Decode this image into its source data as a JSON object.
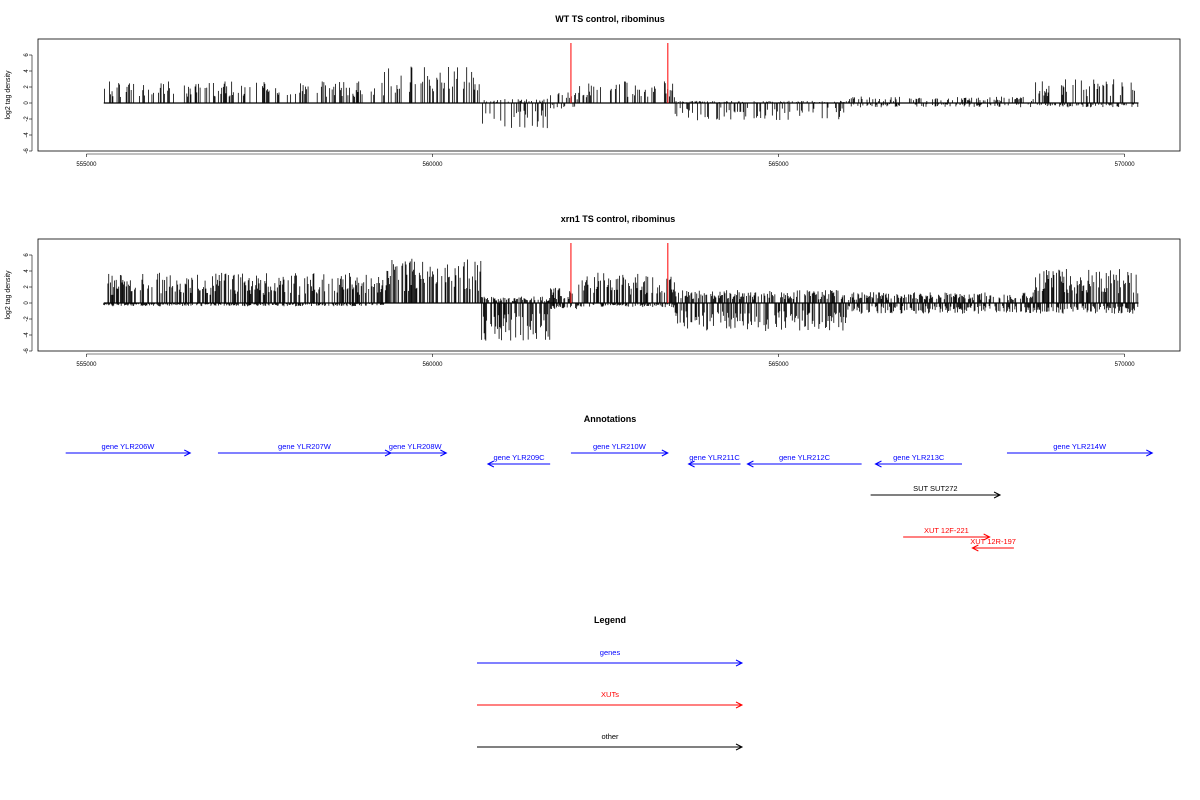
{
  "colors": {
    "genes": "#0000ff",
    "xuts": "#ff0000",
    "other": "#000000",
    "bars": "#000000",
    "marker": "#ff0000"
  },
  "chart_data": [
    {
      "type": "bar",
      "title": "WT TS control, ribominus",
      "ylabel": "log2 tag density",
      "xlim": [
        554300,
        570800
      ],
      "ylim": [
        -6,
        8
      ],
      "xticks": [
        555000,
        560000,
        565000,
        570000
      ],
      "yticks": [
        -6,
        -4,
        -2,
        0,
        2,
        4,
        6
      ],
      "data_range": [
        555250,
        570200
      ],
      "grid": false,
      "marker_lines": [
        562000,
        563400
      ],
      "profile": [
        {
          "from": 555250,
          "to": 559300,
          "pos": 2.0,
          "neg": 0.0
        },
        {
          "from": 559300,
          "to": 560700,
          "pos": 3.5,
          "neg": 0.0
        },
        {
          "from": 560700,
          "to": 561700,
          "pos": 0.4,
          "neg": -2.4
        },
        {
          "from": 561700,
          "to": 562100,
          "pos": 1.0,
          "neg": -0.6
        },
        {
          "from": 562100,
          "to": 563500,
          "pos": 2.0,
          "neg": 0.0
        },
        {
          "from": 563500,
          "to": 566000,
          "pos": 0.2,
          "neg": -1.6
        },
        {
          "from": 566000,
          "to": 568700,
          "pos": 0.6,
          "neg": -0.4
        },
        {
          "from": 568700,
          "to": 570200,
          "pos": 2.2,
          "neg": -0.4
        }
      ]
    },
    {
      "type": "bar",
      "title": "xrn1 TS control, ribominus",
      "ylabel": "log2 tag density",
      "xlim": [
        554300,
        570800
      ],
      "ylim": [
        -6,
        8
      ],
      "xticks": [
        555000,
        560000,
        565000,
        570000
      ],
      "yticks": [
        -6,
        -4,
        -2,
        0,
        2,
        4,
        6
      ],
      "data_range": [
        555250,
        570200
      ],
      "grid": false,
      "marker_lines": [
        562000,
        563400
      ],
      "profile": [
        {
          "from": 555250,
          "to": 559300,
          "pos": 2.8,
          "neg": -0.3
        },
        {
          "from": 559300,
          "to": 560700,
          "pos": 4.2,
          "neg": 0.0
        },
        {
          "from": 560700,
          "to": 561700,
          "pos": 0.6,
          "neg": -3.5
        },
        {
          "from": 561700,
          "to": 562100,
          "pos": 1.4,
          "neg": -0.6
        },
        {
          "from": 562100,
          "to": 563500,
          "pos": 2.8,
          "neg": -0.4
        },
        {
          "from": 563500,
          "to": 566000,
          "pos": 1.2,
          "neg": -2.6
        },
        {
          "from": 566000,
          "to": 568700,
          "pos": 1.0,
          "neg": -1.0
        },
        {
          "from": 568700,
          "to": 570200,
          "pos": 3.2,
          "neg": -1.0
        }
      ]
    }
  ],
  "annotations": {
    "title": "Annotations",
    "items": [
      {
        "label": "gene YLR206W",
        "start": 554700,
        "end": 556500,
        "strand": "+",
        "row": 0,
        "type": "genes"
      },
      {
        "label": "gene YLR207W",
        "start": 556900,
        "end": 559400,
        "strand": "+",
        "row": 0,
        "type": "genes"
      },
      {
        "label": "gene YLR208W",
        "start": 559300,
        "end": 560200,
        "strand": "+",
        "row": 0,
        "type": "genes"
      },
      {
        "label": "gene YLR209C",
        "start": 560800,
        "end": 561700,
        "strand": "-",
        "row": 1,
        "type": "genes"
      },
      {
        "label": "gene YLR210W",
        "start": 562000,
        "end": 563400,
        "strand": "+",
        "row": 0,
        "type": "genes"
      },
      {
        "label": "gene YLR211C",
        "start": 563700,
        "end": 564450,
        "strand": "-",
        "row": 1,
        "type": "genes"
      },
      {
        "label": "gene YLR212C",
        "start": 564550,
        "end": 566200,
        "strand": "-",
        "row": 1,
        "type": "genes"
      },
      {
        "label": "gene YLR213C",
        "start": 566400,
        "end": 567650,
        "strand": "-",
        "row": 1,
        "type": "genes"
      },
      {
        "label": "gene YLR214W",
        "start": 568300,
        "end": 570400,
        "strand": "+",
        "row": 0,
        "type": "genes"
      },
      {
        "label": "SUT SUT272",
        "start": 566330,
        "end": 568200,
        "strand": "+",
        "row": 2,
        "type": "other"
      },
      {
        "label": "XUT 12F-221",
        "start": 566800,
        "end": 568050,
        "strand": "+",
        "row": 3,
        "type": "xuts"
      },
      {
        "label": "XUT 12R-197",
        "start": 567800,
        "end": 568400,
        "strand": "-",
        "row": 4,
        "type": "xuts"
      }
    ]
  },
  "legend": {
    "title": "Legend",
    "items": [
      {
        "label": "genes",
        "type": "genes"
      },
      {
        "label": "XUTs",
        "type": "xuts"
      },
      {
        "label": "other",
        "type": "other"
      }
    ]
  }
}
